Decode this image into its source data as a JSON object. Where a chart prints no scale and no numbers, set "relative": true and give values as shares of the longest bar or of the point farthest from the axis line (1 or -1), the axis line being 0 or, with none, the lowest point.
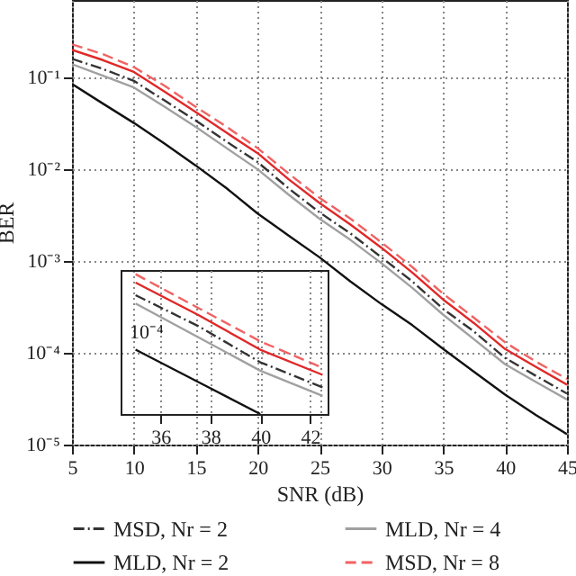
{
  "chart_data": [
    {
      "type": "line",
      "xlabel": "SNR (dB)",
      "ylabel": "BER",
      "log": "y",
      "grid": true,
      "legend": "bottom",
      "xlim": [
        5,
        45
      ],
      "xticks": [
        5,
        10,
        15,
        20,
        25,
        30,
        35,
        40,
        45
      ],
      "ylim": [
        1e-05,
        0.7
      ],
      "yticks": [
        {
          "value": 1e-05,
          "label": "10⁻⁵"
        },
        {
          "value": 0.0001,
          "label": "10⁻⁴"
        },
        {
          "value": 0.001,
          "label": "10⁻³"
        },
        {
          "value": 0.01,
          "label": "10⁻²"
        },
        {
          "value": 0.1,
          "label": "10⁻¹"
        }
      ],
      "x": [
        5,
        7.5,
        10,
        12.5,
        15,
        17.5,
        20,
        22.5,
        25,
        27.5,
        30,
        32.5,
        35,
        37.5,
        40,
        42.5,
        45
      ],
      "series": [
        {
          "name": "MSD, Nr = 2",
          "color": "#333333",
          "line_style": "dashdot",
          "values": [
            0.16,
            0.124,
            0.092,
            0.056,
            0.034,
            0.02,
            0.012,
            0.0062,
            0.0034,
            0.002,
            0.0011,
            0.0006,
            0.0003,
            0.00017,
            8.8e-05,
            5.6e-05,
            3.6e-05
          ]
        },
        {
          "name": "MLD, Nr = 4",
          "color": "#a0a0a0",
          "line_style": "solid",
          "values": [
            0.14,
            0.105,
            0.078,
            0.048,
            0.029,
            0.017,
            0.01,
            0.0053,
            0.0029,
            0.0017,
            0.00095,
            0.00051,
            0.00026,
            0.00014,
            7.5e-05,
            4.8e-05,
            3.1e-05
          ]
        },
        {
          "name": "MLD, Nr = 2",
          "color": "#111111",
          "line_style": "solid",
          "values": [
            0.085,
            0.052,
            0.032,
            0.019,
            0.011,
            0.0062,
            0.0033,
            0.0019,
            0.0011,
            0.0006,
            0.00034,
            0.0002,
            0.00011,
            6.2e-05,
            3.5e-05,
            2.1e-05,
            1.3e-05
          ]
        },
        {
          "name": "MSD, Nr = 8",
          "color": "#f06262",
          "line_style": "dashed",
          "values": [
            0.23,
            0.18,
            0.13,
            0.081,
            0.048,
            0.029,
            0.017,
            0.009,
            0.0049,
            0.0029,
            0.0016,
            0.00086,
            0.00044,
            0.00024,
            0.00013,
            8e-05,
            5.2e-05
          ]
        },
        {
          "color": "#e02828",
          "line_style": "solid",
          "values": [
            0.2,
            0.155,
            0.115,
            0.07,
            0.042,
            0.025,
            0.015,
            0.0078,
            0.0043,
            0.0025,
            0.0014,
            0.00075,
            0.00038,
            0.00021,
            0.00011,
            7e-05,
            4.5e-05
          ]
        }
      ]
    },
    {
      "type": "line",
      "relative": true,
      "grid": "x",
      "annotations": [
        "10⁻⁴"
      ],
      "xlim": [
        34.4,
        42.7
      ],
      "xticks": [
        36,
        38,
        40,
        42
      ],
      "series": [
        {
          "color": "#333333",
          "line_style": "dashdot",
          "x": [
            35,
            37.5,
            40,
            42.5
          ],
          "values": [
            0.85,
            0.63,
            0.37,
            0.19
          ]
        },
        {
          "color": "#a0a0a0",
          "line_style": "solid",
          "x": [
            35,
            37.5,
            40,
            42.5
          ],
          "values": [
            0.79,
            0.55,
            0.31,
            0.13
          ]
        },
        {
          "color": "#111111",
          "line_style": "solid",
          "x": [
            35,
            37.5,
            40
          ],
          "values": [
            0.46,
            0.23,
            0
          ]
        },
        {
          "color": "#f06262",
          "line_style": "dashed",
          "x": [
            35,
            37.5,
            40,
            42.5
          ],
          "values": [
            1,
            0.76,
            0.52,
            0.33
          ]
        },
        {
          "color": "#e02828",
          "line_style": "solid",
          "x": [
            35,
            37.5,
            40,
            42.5
          ],
          "values": [
            0.94,
            0.71,
            0.46,
            0.28
          ]
        }
      ]
    }
  ]
}
